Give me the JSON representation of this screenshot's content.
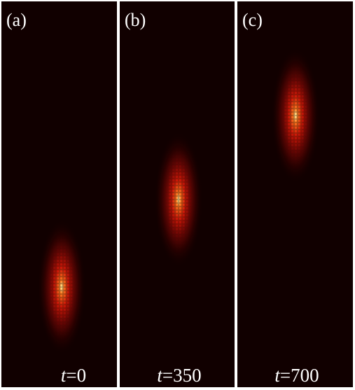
{
  "panels": [
    {
      "label": "(a)",
      "time_symbol": "t",
      "time_value": "=0"
    },
    {
      "label": "(b)",
      "time_symbol": "t",
      "time_value": "=350"
    },
    {
      "label": "(c)",
      "time_symbol": "t",
      "time_value": "=700"
    }
  ]
}
